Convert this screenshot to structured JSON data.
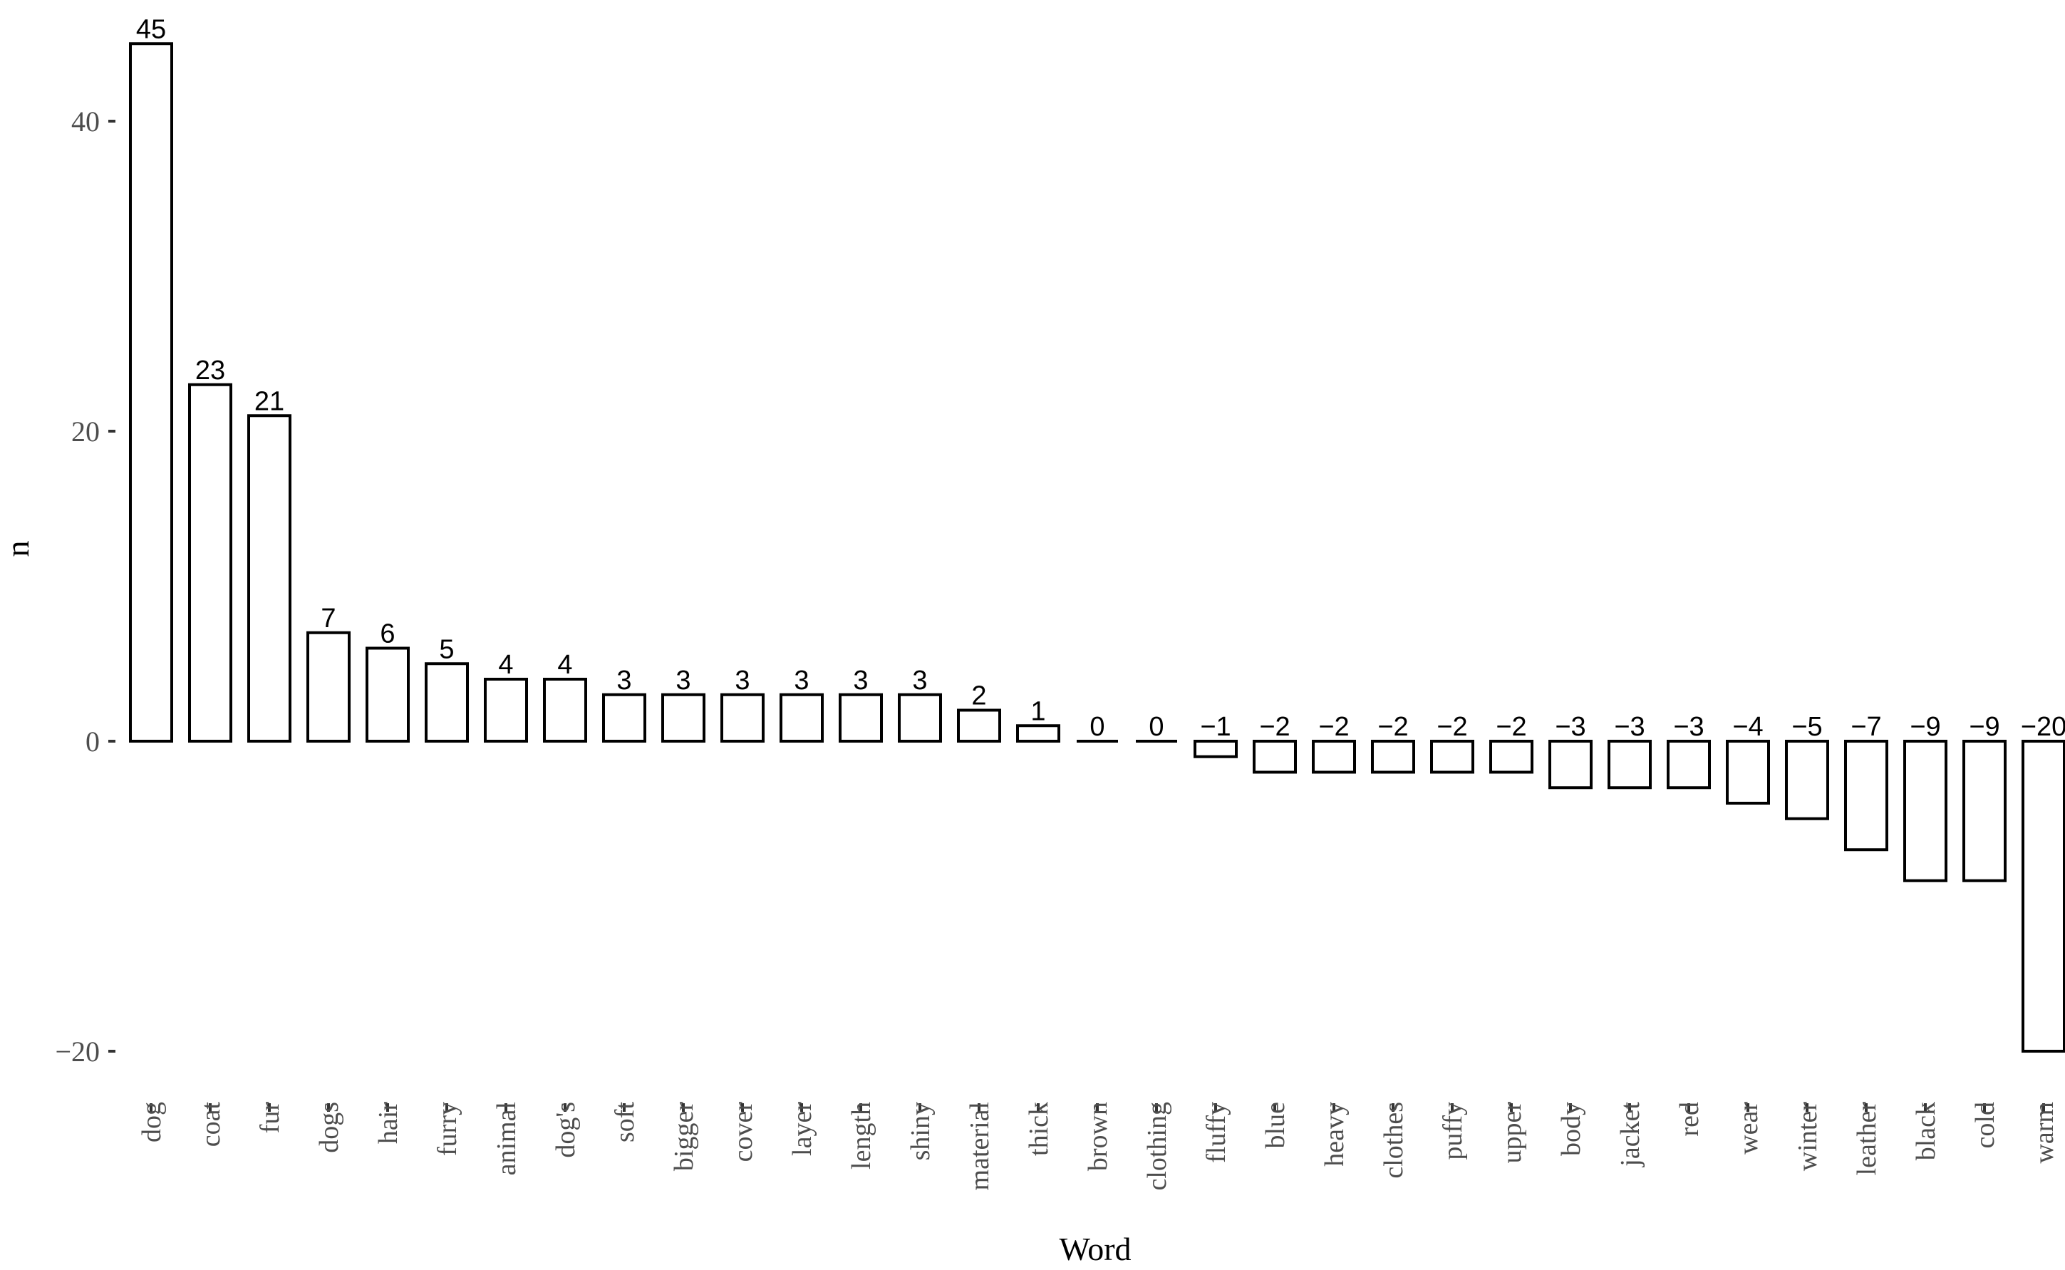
{
  "chart_data": {
    "type": "bar",
    "xlabel": "Word",
    "ylabel": "n",
    "ylim": [
      -22,
      46
    ],
    "yticks": [
      -20,
      0,
      20,
      40
    ],
    "ytick_labels": [
      "−20",
      "0",
      "20",
      "40"
    ],
    "grid": false,
    "legend": "none",
    "categories": [
      "dog",
      "coat",
      "fur",
      "dogs",
      "hair",
      "furry",
      "animal",
      "dog's",
      "soft",
      "bigger",
      "cover",
      "layer",
      "length",
      "shiny",
      "material",
      "thick",
      "brown",
      "clothing",
      "fluffy",
      "blue",
      "heavy",
      "clothes",
      "puffy",
      "upper",
      "body",
      "jacket",
      "red",
      "wear",
      "winter",
      "leather",
      "black",
      "cold",
      "warm"
    ],
    "values": [
      45,
      23,
      21,
      7,
      6,
      5,
      4,
      4,
      3,
      3,
      3,
      3,
      3,
      3,
      2,
      1,
      0,
      0,
      -1,
      -2,
      -2,
      -2,
      -2,
      -2,
      -3,
      -3,
      -3,
      -4,
      -5,
      -7,
      -9,
      -9,
      -20
    ],
    "value_labels": [
      "45",
      "23",
      "21",
      "7",
      "6",
      "5",
      "4",
      "4",
      "3",
      "3",
      "3",
      "3",
      "3",
      "3",
      "2",
      "1",
      "0",
      "0",
      "−1",
      "−2",
      "−2",
      "−2",
      "−2",
      "−2",
      "−3",
      "−3",
      "−3",
      "−4",
      "−5",
      "−7",
      "−9",
      "−9",
      "−20"
    ],
    "colors": {
      "bar_fill": "#ffffff",
      "bar_stroke": "#000000",
      "tick_text": "#4d4d4d"
    }
  }
}
